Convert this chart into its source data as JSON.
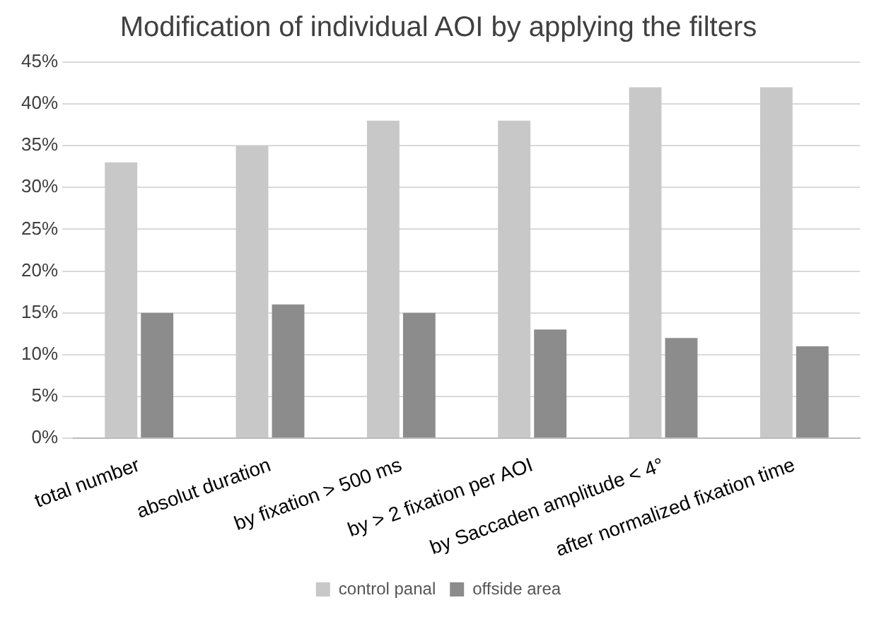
{
  "chart_data": {
    "type": "bar",
    "title": "Modification of individual AOI by applying the filters",
    "categories": [
      "total number",
      "absolut duration",
      "by fixation > 500 ms",
      "by > 2 fixation per AOI",
      "by Saccaden amplitude < 4°",
      "after normalized fixation time"
    ],
    "series": [
      {
        "name": "control panal",
        "color": "#c8c8c8",
        "values": [
          33,
          35,
          38,
          38,
          42,
          42
        ]
      },
      {
        "name": "offside area",
        "color": "#8c8c8c",
        "values": [
          15,
          16,
          15,
          13,
          12,
          11
        ]
      }
    ],
    "ylim": [
      0,
      45
    ],
    "yticks": [
      {
        "value": 0,
        "label": "0%"
      },
      {
        "value": 5,
        "label": "5%"
      },
      {
        "value": 10,
        "label": "10%"
      },
      {
        "value": 15,
        "label": "15%"
      },
      {
        "value": 20,
        "label": "20%"
      },
      {
        "value": 25,
        "label": "25%"
      },
      {
        "value": 30,
        "label": "30%"
      },
      {
        "value": 35,
        "label": "35%"
      },
      {
        "value": 40,
        "label": "40%"
      },
      {
        "value": 45,
        "label": "45%"
      }
    ],
    "grid": "y",
    "legend": "bottom"
  }
}
